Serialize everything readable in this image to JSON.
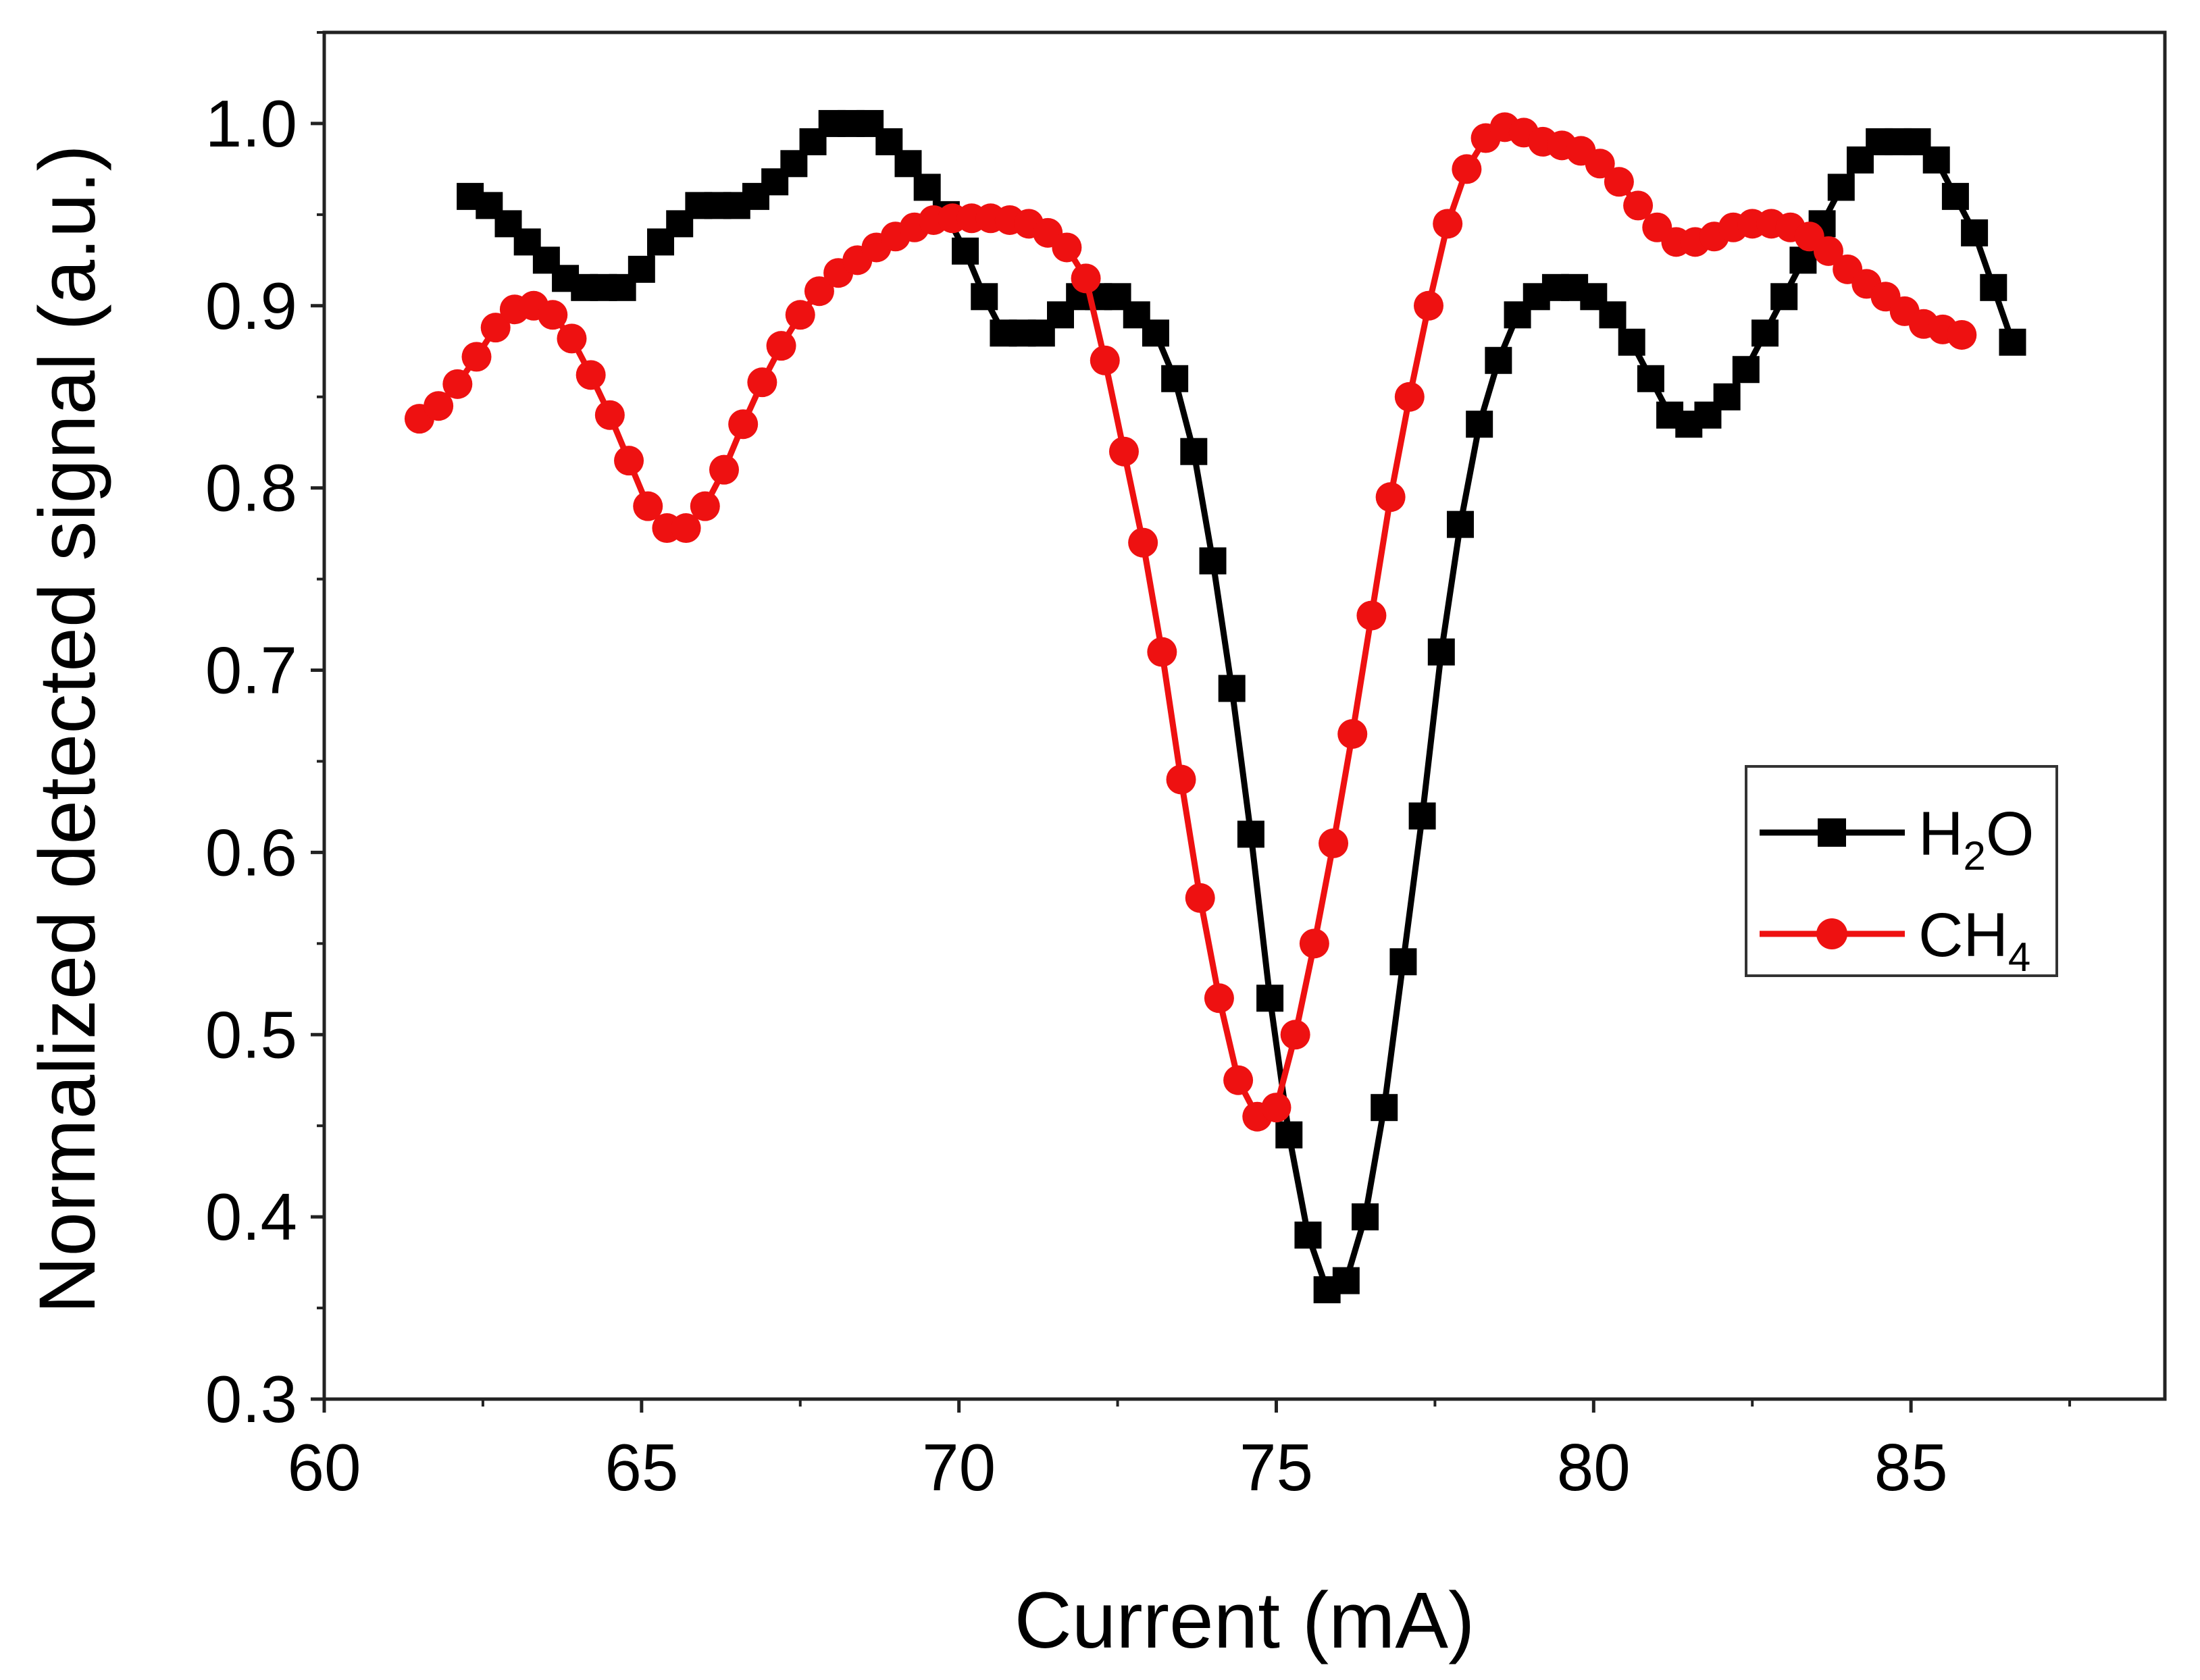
{
  "chart_data": {
    "type": "line",
    "title": "",
    "xlabel": "Current (mA)",
    "ylabel": "Normalized detected signal (a.u.)",
    "xlim": [
      60,
      89
    ],
    "ylim": [
      0.3,
      1.05
    ],
    "xticks": [
      60,
      65,
      70,
      75,
      80,
      85
    ],
    "yticks": [
      0.3,
      0.4,
      0.5,
      0.6,
      0.7,
      0.8,
      0.9,
      1.0
    ],
    "xtick_labels": [
      "60",
      "65",
      "70",
      "75",
      "80",
      "85"
    ],
    "ytick_labels": [
      "0.3",
      "0.4",
      "0.5",
      "0.6",
      "0.7",
      "0.8",
      "0.9",
      "1.0"
    ],
    "grid": false,
    "legend_position": "center-right",
    "series": [
      {
        "name": "H2O",
        "legend_main": "H",
        "legend_sub": "2",
        "legend_tail": "O",
        "color": "#000000",
        "marker": "square",
        "x": [
          62.3,
          62.6,
          62.9,
          63.2,
          63.5,
          63.8,
          64.1,
          64.4,
          64.7,
          65.0,
          65.3,
          65.6,
          65.9,
          66.2,
          66.5,
          66.8,
          67.1,
          67.4,
          67.7,
          68.0,
          68.3,
          68.6,
          68.9,
          69.2,
          69.5,
          69.8,
          70.1,
          70.4,
          70.7,
          71.0,
          71.3,
          71.6,
          71.9,
          72.2,
          72.5,
          72.8,
          73.1,
          73.4,
          73.7,
          74.0,
          74.3,
          74.6,
          74.9,
          75.2,
          75.5,
          75.8,
          76.1,
          76.4,
          76.7,
          77.0,
          77.3,
          77.6,
          77.9,
          78.2,
          78.5,
          78.8,
          79.1,
          79.4,
          79.7,
          80.0,
          80.3,
          80.6,
          80.9,
          81.2,
          81.5,
          81.8,
          82.1,
          82.4,
          82.7,
          83.0,
          83.3,
          83.6,
          83.9,
          84.2,
          84.5,
          84.8,
          85.1,
          85.4,
          85.7,
          86.0,
          86.3,
          86.6
        ],
        "y": [
          0.96,
          0.955,
          0.945,
          0.935,
          0.925,
          0.915,
          0.91,
          0.91,
          0.91,
          0.92,
          0.935,
          0.945,
          0.955,
          0.955,
          0.955,
          0.96,
          0.968,
          0.978,
          0.99,
          1.0,
          1.0,
          1.0,
          0.99,
          0.978,
          0.965,
          0.95,
          0.93,
          0.905,
          0.885,
          0.885,
          0.885,
          0.895,
          0.905,
          0.905,
          0.905,
          0.895,
          0.885,
          0.86,
          0.82,
          0.76,
          0.69,
          0.61,
          0.52,
          0.445,
          0.39,
          0.36,
          0.365,
          0.4,
          0.46,
          0.54,
          0.62,
          0.71,
          0.78,
          0.835,
          0.87,
          0.895,
          0.905,
          0.91,
          0.91,
          0.905,
          0.895,
          0.88,
          0.86,
          0.84,
          0.835,
          0.84,
          0.85,
          0.865,
          0.885,
          0.905,
          0.925,
          0.945,
          0.965,
          0.98,
          0.99,
          0.99,
          0.99,
          0.98,
          0.96,
          0.94,
          0.91,
          0.88
        ]
      },
      {
        "name": "CH4",
        "legend_main": "CH",
        "legend_sub": "4",
        "legend_tail": "",
        "color": "#ee1111",
        "marker": "circle",
        "x": [
          61.5,
          61.8,
          62.1,
          62.4,
          62.7,
          63.0,
          63.3,
          63.6,
          63.9,
          64.2,
          64.5,
          64.8,
          65.1,
          65.4,
          65.7,
          66.0,
          66.3,
          66.6,
          66.9,
          67.2,
          67.5,
          67.8,
          68.1,
          68.4,
          68.7,
          69.0,
          69.3,
          69.6,
          69.9,
          70.2,
          70.5,
          70.8,
          71.1,
          71.4,
          71.7,
          72.0,
          72.3,
          72.6,
          72.9,
          73.2,
          73.5,
          73.8,
          74.1,
          74.4,
          74.7,
          75.0,
          75.3,
          75.6,
          75.9,
          76.2,
          76.5,
          76.8,
          77.1,
          77.4,
          77.7,
          78.0,
          78.3,
          78.6,
          78.9,
          79.2,
          79.5,
          79.8,
          80.1,
          80.4,
          80.7,
          81.0,
          81.3,
          81.6,
          81.9,
          82.2,
          82.5,
          82.8,
          83.1,
          83.4,
          83.7,
          84.0,
          84.3,
          84.6,
          84.9,
          85.2,
          85.5,
          85.8
        ],
        "y": [
          0.838,
          0.845,
          0.857,
          0.872,
          0.888,
          0.898,
          0.9,
          0.895,
          0.882,
          0.862,
          0.84,
          0.815,
          0.79,
          0.778,
          0.778,
          0.79,
          0.81,
          0.835,
          0.858,
          0.878,
          0.895,
          0.908,
          0.918,
          0.925,
          0.932,
          0.938,
          0.943,
          0.947,
          0.948,
          0.948,
          0.948,
          0.947,
          0.945,
          0.94,
          0.932,
          0.915,
          0.87,
          0.82,
          0.77,
          0.71,
          0.64,
          0.575,
          0.52,
          0.475,
          0.455,
          0.46,
          0.5,
          0.55,
          0.605,
          0.665,
          0.73,
          0.795,
          0.85,
          0.9,
          0.945,
          0.975,
          0.992,
          0.998,
          0.995,
          0.99,
          0.988,
          0.985,
          0.978,
          0.968,
          0.955,
          0.943,
          0.935,
          0.935,
          0.938,
          0.943,
          0.945,
          0.945,
          0.943,
          0.938,
          0.93,
          0.92,
          0.912,
          0.905,
          0.897,
          0.89,
          0.887,
          0.884
        ]
      }
    ]
  }
}
